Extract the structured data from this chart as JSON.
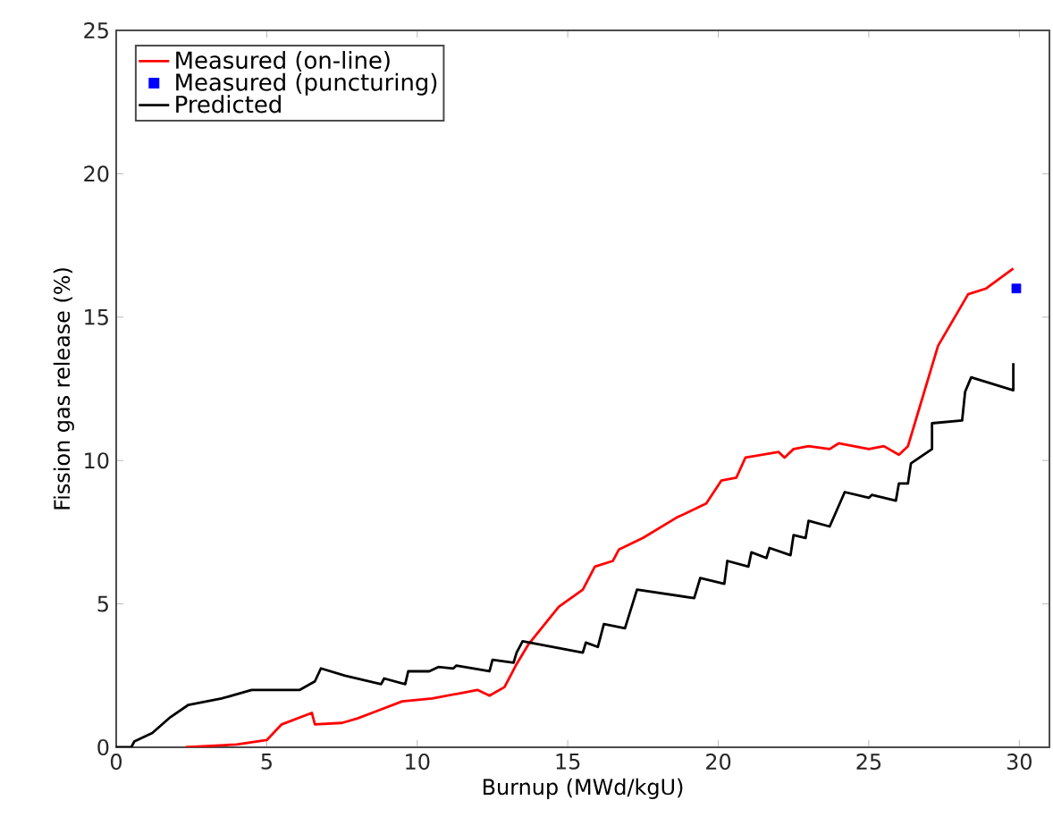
{
  "chart_data": {
    "type": "line",
    "xlabel": "Burnup (MWd/kgU)",
    "ylabel": "Fission gas release (%)",
    "xlim": [
      0,
      31
    ],
    "ylim": [
      0,
      25
    ],
    "xticks": [
      0,
      5,
      10,
      15,
      20,
      25,
      30
    ],
    "yticks": [
      0,
      5,
      10,
      15,
      20,
      25
    ],
    "grid": false,
    "legend": "top left",
    "series": [
      {
        "name": "Measured (on-line)",
        "color": "#ff0000",
        "x": [
          2.3,
          4,
          5,
          5.5,
          6.5,
          6.6,
          7.5,
          8,
          8.5,
          9.5,
          10.5,
          11.5,
          12,
          12.4,
          12.9,
          13.3,
          13.7,
          14.7,
          15.5,
          15.9,
          16.5,
          16.7,
          17.5,
          18.6,
          19.6,
          20.1,
          20.6,
          20.9,
          22.0,
          22.2,
          22.5,
          23.0,
          23.7,
          24.0,
          25.0,
          25.5,
          26.0,
          26.3,
          26.7,
          27.3,
          28.3,
          28.9,
          29.8
        ],
        "values": [
          0,
          0.1,
          0.25,
          0.8,
          1.2,
          0.8,
          0.85,
          1.0,
          1.2,
          1.6,
          1.7,
          1.9,
          2.0,
          1.8,
          2.1,
          2.9,
          3.6,
          4.9,
          5.5,
          6.3,
          6.5,
          6.9,
          7.3,
          8.0,
          8.5,
          9.3,
          9.4,
          10.1,
          10.3,
          10.1,
          10.4,
          10.5,
          10.4,
          10.6,
          10.4,
          10.5,
          10.2,
          10.5,
          11.9,
          14.0,
          15.8,
          16.0,
          16.7
        ]
      },
      {
        "name": "Measured (puncturing)",
        "type": "scatter",
        "marker": "square",
        "color": "#0000ff",
        "x": [
          29.9
        ],
        "values": [
          16.0
        ]
      },
      {
        "name": "Predicted",
        "color": "#000000",
        "x": [
          0,
          0.5,
          0.6,
          1.2,
          1.8,
          2.4,
          3.5,
          4.5,
          6.1,
          6.6,
          6.8,
          7.6,
          8.8,
          8.9,
          9.6,
          9.7,
          10.4,
          10.7,
          11.2,
          11.3,
          12.4,
          12.5,
          13.2,
          13.3,
          13.5,
          15.5,
          15.6,
          16.0,
          16.2,
          16.9,
          17.3,
          19.2,
          19.4,
          20.2,
          20.3,
          21.0,
          21.1,
          21.6,
          21.7,
          22.4,
          22.5,
          22.9,
          23.0,
          23.7,
          24.2,
          25.0,
          25.1,
          25.9,
          26.0,
          26.3,
          26.4,
          27.1,
          27.1,
          28.1,
          28.2,
          28.4,
          29.8,
          29.8
        ],
        "values": [
          0,
          0,
          0.2,
          0.5,
          1.05,
          1.48,
          1.7,
          2.0,
          2.0,
          2.3,
          2.75,
          2.5,
          2.2,
          2.4,
          2.2,
          2.65,
          2.65,
          2.8,
          2.75,
          2.85,
          2.65,
          3.05,
          2.95,
          3.3,
          3.7,
          3.3,
          3.65,
          3.5,
          4.3,
          4.15,
          5.5,
          5.2,
          5.9,
          5.7,
          6.5,
          6.3,
          6.8,
          6.6,
          6.95,
          6.7,
          7.4,
          7.3,
          7.9,
          7.7,
          8.9,
          8.7,
          8.8,
          8.6,
          9.2,
          9.2,
          9.9,
          10.4,
          11.3,
          11.4,
          12.4,
          12.9,
          12.45,
          13.4
        ]
      }
    ]
  }
}
